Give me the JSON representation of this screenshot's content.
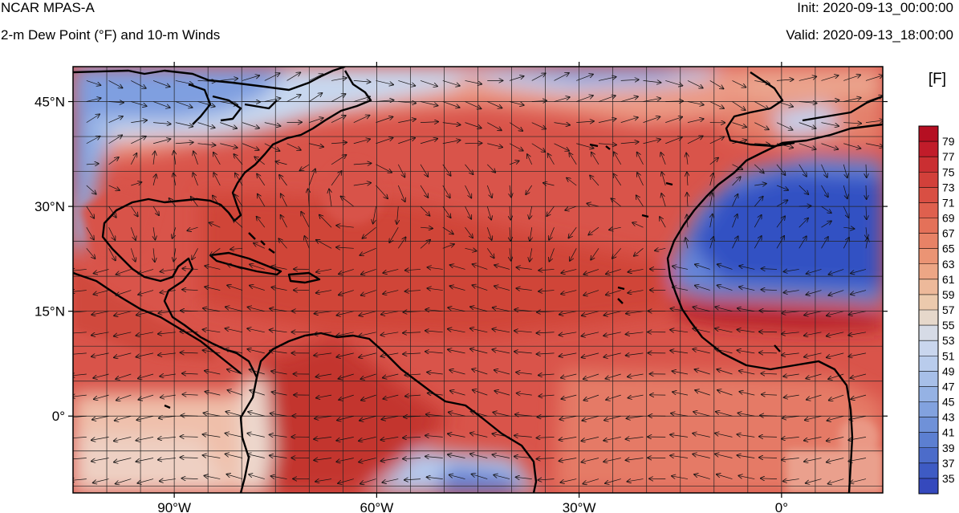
{
  "header": {
    "model": "NCAR MPAS-A",
    "field": "2-m Dew Point (°F) and 10-m Winds",
    "init": "Init: 2020-09-13_00:00:00",
    "valid": "Valid: 2020-09-13_18:00:00"
  },
  "map": {
    "projection": "equirectangular",
    "lon_range": [
      -105,
      15
    ],
    "lat_range": [
      -11,
      50
    ],
    "lon_ticks": [
      {
        "value": -90,
        "label": "90°W"
      },
      {
        "value": -60,
        "label": "60°W"
      },
      {
        "value": -30,
        "label": "30°W"
      },
      {
        "value": 0,
        "label": "0°"
      }
    ],
    "lat_ticks": [
      {
        "value": 45,
        "label": "45°N"
      },
      {
        "value": 30,
        "label": "30°N"
      },
      {
        "value": 15,
        "label": "15°N"
      },
      {
        "value": 0,
        "label": "0°"
      }
    ],
    "gridlines": true,
    "grid_spacing_deg": 5,
    "field_colors": {
      "hot": "#b8262a",
      "warm": "#dc5a4a",
      "mild": "#eb9a85",
      "cool": "#a7c3ea",
      "cold": "#3f5ec8"
    },
    "wind_vectors": true
  },
  "colorbar": {
    "units": "[F]",
    "labels": [
      "79",
      "77",
      "75",
      "73",
      "71",
      "69",
      "67",
      "65",
      "63",
      "61",
      "59",
      "57",
      "55",
      "53",
      "51",
      "49",
      "47",
      "45",
      "43",
      "41",
      "39",
      "37",
      "35"
    ],
    "colors": [
      "#b50f22",
      "#c11c2a",
      "#ca2f32",
      "#d2403a",
      "#d94f43",
      "#df604e",
      "#e47159",
      "#e88266",
      "#eb9474",
      "#eda685",
      "#edb99a",
      "#eccaad",
      "#e6d8cb",
      "#d6dbe6",
      "#c9d6ee",
      "#b9ccec",
      "#a7bfe8",
      "#95b2e4",
      "#82a2df",
      "#6f91d8",
      "#5c7fd1",
      "#4c6cca",
      "#3e5bc4",
      "#3549bd"
    ]
  }
}
